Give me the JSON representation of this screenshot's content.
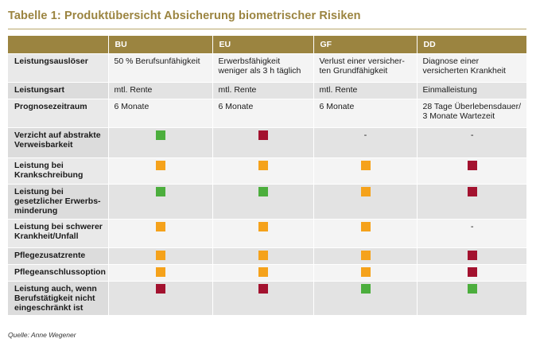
{
  "title": "Tabelle 1: Produktübersicht Absicherung biometrischer Risiken",
  "columns": [
    "",
    "BU",
    "EU",
    "GF",
    "DD"
  ],
  "text_rows": [
    {
      "label": "Leistungsauslöser",
      "cells": [
        "50 % Berufsunfähigkeit",
        "Erwerbsfähigkeit weniger als 3 h täglich",
        "Verlust einer versicher-ten Grundfähigkeit",
        "Diagnose einer versicherten Krankheit"
      ]
    },
    {
      "label": "Leistungsart",
      "cells": [
        "mtl. Rente",
        "mtl. Rente",
        "mtl. Rente",
        "Einmalleistung"
      ]
    },
    {
      "label": "Prognosezeitraum",
      "cells": [
        "6 Monate",
        "6 Monate",
        "6 Monate",
        "28 Tage Überlebensdauer/ 3 Monate Wartezeit"
      ]
    }
  ],
  "mark_rows": [
    {
      "label": "Verzicht auf abstrakte Verweisbarkeit",
      "marks": [
        "green",
        "red",
        "-",
        "-"
      ]
    },
    {
      "label": "Leistung bei Krankschreibung",
      "marks": [
        "orange",
        "orange",
        "orange",
        "red"
      ]
    },
    {
      "label": "Leistung bei gesetzlicher Erwerbs-minderung",
      "marks": [
        "green",
        "green",
        "orange",
        "red"
      ]
    },
    {
      "label": "Leistung bei schwerer Krankheit/Unfall",
      "marks": [
        "orange",
        "orange",
        "orange",
        "-"
      ]
    },
    {
      "label": "Pflegezusatzrente",
      "marks": [
        "orange",
        "orange",
        "orange",
        "red"
      ]
    },
    {
      "label": "Pflegeanschlussoption",
      "marks": [
        "orange",
        "orange",
        "orange",
        "red"
      ]
    },
    {
      "label": "Leistung auch, wenn Berufstätigkeit nicht eingeschränkt ist",
      "marks": [
        "red",
        "red",
        "green",
        "green"
      ]
    }
  ],
  "colors": {
    "green": "#4cae3d",
    "orange": "#f5a21b",
    "red": "#a3122f",
    "header": "#9b8440"
  },
  "source": "Quelle: Anne Wegener"
}
